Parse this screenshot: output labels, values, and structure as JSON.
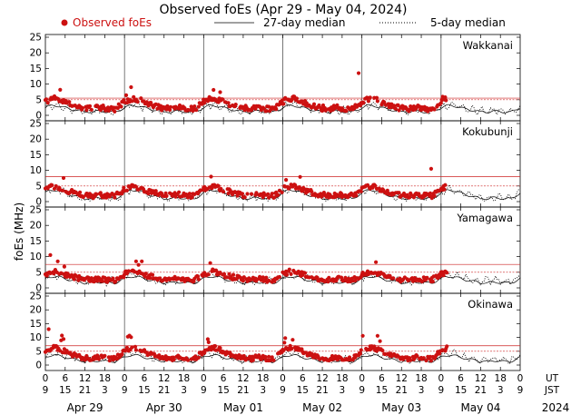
{
  "colors": {
    "observed": "#cc1111",
    "median27": "#000000",
    "median5": "#000000",
    "threshold": "#cc2222",
    "frame": "#000000",
    "grid": "#b0b0b0"
  },
  "chart_data": {
    "type": "scatter",
    "title": "Observed foEs (Apr 29 - May 04, 2024)",
    "legend": {
      "observed": "Observed foEs",
      "median27": "27-day median",
      "median5": "5-day median",
      "placement": "top"
    },
    "ylabel": "foEs (MHz)",
    "ylim": [
      0,
      25
    ],
    "yticks": [
      "0",
      "5",
      "10",
      "15",
      "20",
      "25"
    ],
    "xlim_hours_ut": [
      0,
      144
    ],
    "day_boundaries_ut_hours": [
      0,
      24,
      48,
      72,
      96,
      120,
      144
    ],
    "ut_ticks": [
      "0",
      "6",
      "12",
      "18",
      "0",
      "6",
      "12",
      "18",
      "0",
      "6",
      "12",
      "18",
      "0",
      "6",
      "12",
      "18",
      "0",
      "6",
      "12",
      "18",
      "0",
      "6",
      "12",
      "18",
      "0"
    ],
    "jst_ticks": [
      "9",
      "15",
      "21",
      "3",
      "9",
      "15",
      "21",
      "3",
      "9",
      "15",
      "21",
      "3",
      "9",
      "15",
      "21",
      "3",
      "9",
      "15",
      "21",
      "3",
      "9",
      "15",
      "21",
      "3",
      "9"
    ],
    "axis_tags": {
      "ut": "UT",
      "jst": "JST"
    },
    "dates": [
      "Apr 29",
      "Apr 30",
      "May 01",
      "May 02",
      "May 03",
      "May 04"
    ],
    "year": "2024",
    "stations": [
      {
        "name": "Wakkanai",
        "threshold_lines": [
          5,
          5.5
        ],
        "peak_observed": 13.5,
        "max_observed_daytime": 9,
        "median_daytime": 3.5,
        "median_night": 1
      },
      {
        "name": "Kokubunji",
        "threshold_lines": [
          5,
          8
        ],
        "peak_observed": 10.5,
        "max_observed_daytime": 8,
        "median_daytime": 4.2,
        "median_night": 0.8
      },
      {
        "name": "Yamagawa",
        "threshold_lines": [
          5,
          7.5
        ],
        "peak_observed": 10.5,
        "max_observed_daytime": 8.5,
        "median_daytime": 4,
        "median_night": 1.5
      },
      {
        "name": "Okinawa",
        "threshold_lines": [
          5,
          7
        ],
        "peak_observed": 13,
        "max_observed_daytime": 11,
        "median_daytime": 4,
        "median_night": 1.2
      }
    ]
  }
}
